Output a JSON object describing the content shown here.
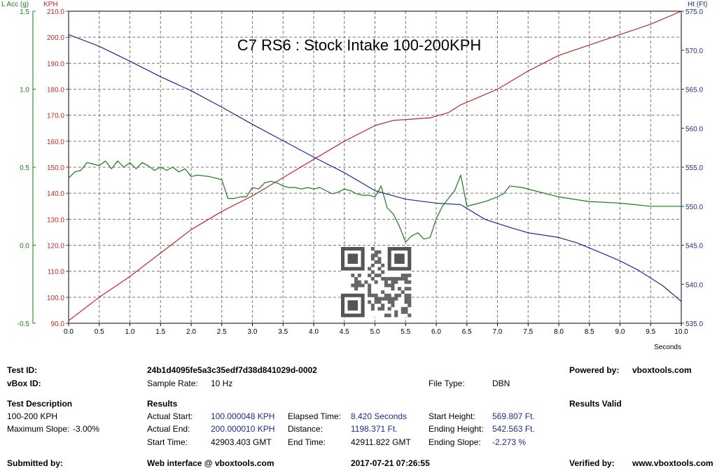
{
  "chart_data": {
    "type": "line",
    "title": "C7 RS6 : Stock Intake 100-200KPH",
    "x": {
      "label": "Seconds",
      "min": 0.0,
      "max": 10.0,
      "ticks": [
        "0.0",
        "0.5",
        "1.0",
        "1.5",
        "2.0",
        "2.5",
        "3.0",
        "3.5",
        "4.0",
        "4.5",
        "5.0",
        "5.5",
        "6.0",
        "6.5",
        "7.0",
        "7.5",
        "8.0",
        "8.5",
        "9.0",
        "9.5",
        "10.0"
      ]
    },
    "y_left_outer": {
      "label": "L Acc (g)",
      "min": -0.5,
      "max": 1.5,
      "ticks": [
        "-0.5",
        "0.0",
        "0.5",
        "1.0",
        "1.5"
      ],
      "color": "#1a7a1a"
    },
    "y_left_inner": {
      "label": "KPH",
      "min": 90,
      "max": 210,
      "ticks": [
        "90.0",
        "100.0",
        "110.0",
        "120.0",
        "130.0",
        "140.0",
        "150.0",
        "160.0",
        "170.0",
        "180.0",
        "190.0",
        "200.0",
        "210.0"
      ],
      "color": "#c0262a"
    },
    "y_right": {
      "label": "Ht (Ft)",
      "min": 535,
      "max": 575,
      "ticks": [
        "535.0",
        "540.0",
        "545.0",
        "550.0",
        "555.0",
        "560.0",
        "565.0",
        "570.0",
        "575.0"
      ],
      "color": "#1e2a8c"
    },
    "grid": true,
    "series": [
      {
        "axis": "y_left_inner",
        "color": "#c0262a",
        "points": [
          [
            0,
            91
          ],
          [
            0.5,
            100
          ],
          [
            1.0,
            108
          ],
          [
            1.5,
            117
          ],
          [
            2.0,
            126
          ],
          [
            2.5,
            133
          ],
          [
            3.0,
            139
          ],
          [
            3.5,
            146
          ],
          [
            4.0,
            153
          ],
          [
            4.5,
            160
          ],
          [
            5.0,
            166
          ],
          [
            5.3,
            168
          ],
          [
            5.9,
            169
          ],
          [
            6.2,
            171
          ],
          [
            6.4,
            174
          ],
          [
            6.6,
            176
          ],
          [
            7.0,
            180
          ],
          [
            7.5,
            187
          ],
          [
            8.0,
            193
          ],
          [
            8.5,
            197
          ],
          [
            9.0,
            201
          ],
          [
            9.5,
            205
          ],
          [
            10.0,
            210
          ]
        ]
      },
      {
        "axis": "y_right",
        "color": "#1e2a8c",
        "points": [
          [
            0,
            572
          ],
          [
            0.5,
            570.5
          ],
          [
            1.0,
            568.6
          ],
          [
            1.5,
            566.6
          ],
          [
            2.0,
            564.8
          ],
          [
            2.5,
            562.7
          ],
          [
            3.0,
            560.5
          ],
          [
            3.5,
            558.4
          ],
          [
            4.0,
            556.3
          ],
          [
            4.5,
            554.3
          ],
          [
            5.0,
            552
          ],
          [
            5.5,
            550.9
          ],
          [
            6.0,
            550.4
          ],
          [
            6.4,
            550.2
          ],
          [
            6.8,
            548.3
          ],
          [
            7.2,
            547.3
          ],
          [
            7.5,
            546.6
          ],
          [
            8.0,
            546
          ],
          [
            8.3,
            545.3
          ],
          [
            8.7,
            544
          ],
          [
            9.0,
            543
          ],
          [
            9.3,
            541.8
          ],
          [
            9.7,
            539.8
          ],
          [
            10.0,
            537.8
          ]
        ]
      },
      {
        "axis": "y_left_outer",
        "color": "#1a7a1a",
        "points": [
          [
            0,
            0.43
          ],
          [
            0.1,
            0.47
          ],
          [
            0.2,
            0.48
          ],
          [
            0.3,
            0.53
          ],
          [
            0.4,
            0.52
          ],
          [
            0.5,
            0.51
          ],
          [
            0.6,
            0.54
          ],
          [
            0.7,
            0.49
          ],
          [
            0.8,
            0.54
          ],
          [
            0.9,
            0.5
          ],
          [
            1.0,
            0.53
          ],
          [
            1.1,
            0.49
          ],
          [
            1.2,
            0.53
          ],
          [
            1.3,
            0.51
          ],
          [
            1.4,
            0.48
          ],
          [
            1.5,
            0.5
          ],
          [
            1.6,
            0.48
          ],
          [
            1.7,
            0.5
          ],
          [
            1.8,
            0.47
          ],
          [
            1.9,
            0.49
          ],
          [
            2.0,
            0.44
          ],
          [
            2.1,
            0.45
          ],
          [
            2.3,
            0.44
          ],
          [
            2.5,
            0.42
          ],
          [
            2.6,
            0.3
          ],
          [
            2.7,
            0.3
          ],
          [
            2.8,
            0.31
          ],
          [
            2.9,
            0.31
          ],
          [
            3.0,
            0.37
          ],
          [
            3.1,
            0.36
          ],
          [
            3.2,
            0.4
          ],
          [
            3.3,
            0.41
          ],
          [
            3.4,
            0.4
          ],
          [
            3.5,
            0.38
          ],
          [
            3.6,
            0.37
          ],
          [
            3.7,
            0.37
          ],
          [
            3.8,
            0.36
          ],
          [
            3.9,
            0.37
          ],
          [
            4.0,
            0.36
          ],
          [
            4.1,
            0.37
          ],
          [
            4.2,
            0.35
          ],
          [
            4.3,
            0.33
          ],
          [
            4.4,
            0.34
          ],
          [
            4.5,
            0.36
          ],
          [
            4.6,
            0.35
          ],
          [
            4.7,
            0.33
          ],
          [
            4.8,
            0.32
          ],
          [
            4.9,
            0.32
          ],
          [
            5.0,
            0.31
          ],
          [
            5.1,
            0.38
          ],
          [
            5.2,
            0.24
          ],
          [
            5.3,
            0.2
          ],
          [
            5.4,
            0.12
          ],
          [
            5.5,
            0.02
          ],
          [
            5.6,
            0.06
          ],
          [
            5.7,
            0.08
          ],
          [
            5.8,
            0.04
          ],
          [
            5.9,
            0.05
          ],
          [
            6.0,
            0.17
          ],
          [
            6.1,
            0.25
          ],
          [
            6.2,
            0.3
          ],
          [
            6.3,
            0.35
          ],
          [
            6.4,
            0.45
          ],
          [
            6.5,
            0.25
          ],
          [
            6.6,
            0.26
          ],
          [
            6.8,
            0.28
          ],
          [
            7.0,
            0.31
          ],
          [
            7.1,
            0.33
          ],
          [
            7.2,
            0.38
          ],
          [
            7.4,
            0.37
          ],
          [
            7.6,
            0.35
          ],
          [
            7.8,
            0.33
          ],
          [
            8.0,
            0.31
          ],
          [
            8.5,
            0.28
          ],
          [
            9.0,
            0.27
          ],
          [
            9.5,
            0.25
          ],
          [
            10.0,
            0.25
          ]
        ]
      }
    ]
  },
  "footer": {
    "test_id_label": "Test ID:",
    "test_id_value": "24b1d4095fe5a3c35edf7d38d841029d-0002",
    "powered_label": "Powered by:",
    "powered_value": "vboxtools.com",
    "vbox_label": "vBox ID:",
    "sample_label": "Sample Rate:",
    "sample_value": "10 Hz",
    "file_label": "File Type:",
    "file_value": "DBN",
    "desc_label": "Test Description",
    "desc_value": "100-200 KPH",
    "slope_label": "Maximum Slope:",
    "slope_value": "-3.00%",
    "results_label": "Results",
    "valid_label": "Results Valid",
    "actual_start_label": "Actual Start:",
    "actual_start_value": "100.000048 KPH",
    "actual_end_label": "Actual End:",
    "actual_end_value": "200.000010 KPH",
    "start_time_label": "Start Time:",
    "start_time_value": "42903.403 GMT",
    "elapsed_label": "Elapsed Time:",
    "elapsed_value": "8.420 Seconds",
    "distance_label": "Distance:",
    "distance_value": "1198.371 Ft.",
    "end_time_label": "End Time:",
    "end_time_value": "42911.822 GMT",
    "start_height_label": "Start Height:",
    "start_height_value": "569.807 Ft.",
    "ending_height_label": "Ending Height:",
    "ending_height_value": "542.563 Ft.",
    "ending_slope_label": "Ending Slope:",
    "ending_slope_value": "-2.273 %",
    "submitted_label": "Submitted by:",
    "web_label": "Web interface @ vboxtools.com",
    "date_value": "2017-07-21 07:26:55",
    "verified_label": "Verified by:",
    "verified_value": "www.vboxtools.com"
  }
}
